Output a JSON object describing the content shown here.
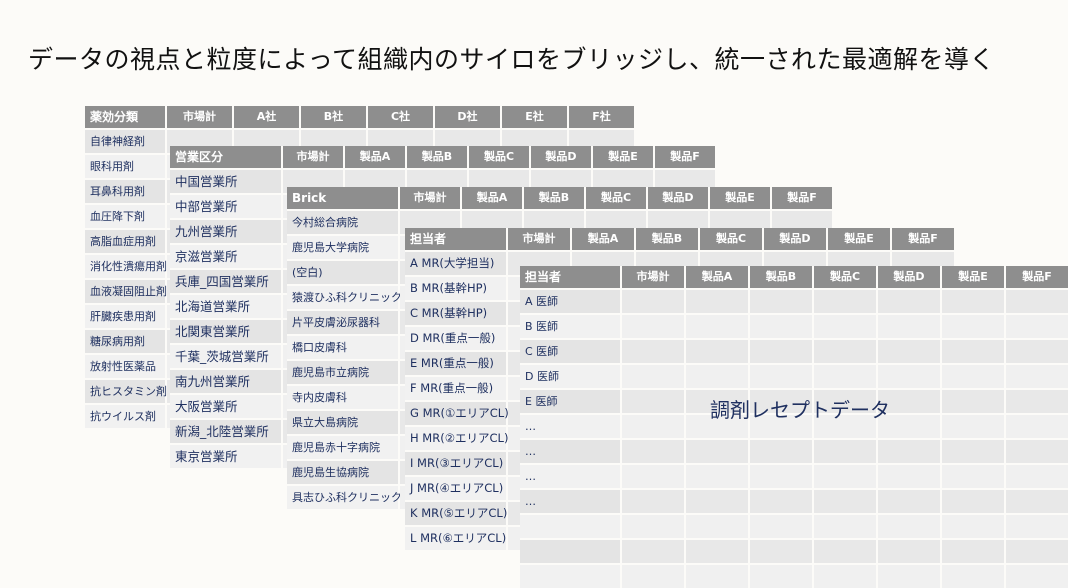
{
  "title": "データの視点と粒度によって組織内のサイロをブリッジし、統一された最適解を導く",
  "overlay_label": "調剤レセプトデータ",
  "colors": {
    "header": "#8e8e8e",
    "row_dark": "#e4e4e4",
    "row_light": "#f1f1f1",
    "text": "#1f3060"
  },
  "tables": [
    {
      "id": "t1",
      "headers": [
        "薬効分類",
        "市場計",
        "A社",
        "B社",
        "C社",
        "D社",
        "E社",
        "F社"
      ],
      "rows": [
        "自律神経剤",
        "眼科用剤",
        "耳鼻科用剤",
        "血圧降下剤",
        "高脂血症用剤",
        "消化性潰瘍用剤",
        "血液凝固阻止剤",
        "肝臓疾患用剤",
        "糖尿病用剤",
        "放射性医薬品",
        "抗ヒスタミン剤",
        "抗ウイルス剤"
      ]
    },
    {
      "id": "t2",
      "headers": [
        "営業区分",
        "市場計",
        "製品A",
        "製品B",
        "製品C",
        "製品D",
        "製品E",
        "製品F"
      ],
      "rows": [
        "中国営業所",
        "中部営業所",
        "九州営業所",
        "京滋営業所",
        "兵庫_四国営業所",
        "北海道営業所",
        "北関東営業所",
        "千葉_茨城営業所",
        "南九州営業所",
        "大阪営業所",
        "新潟_北陸営業所",
        "東京営業所"
      ]
    },
    {
      "id": "t3",
      "headers": [
        "Brick",
        "市場計",
        "製品A",
        "製品B",
        "製品C",
        "製品D",
        "製品E",
        "製品F"
      ],
      "rows": [
        "今村総合病院",
        "鹿児島大学病院",
        "(空白)",
        " 猿渡ひふ科クリニック",
        "片平皮膚泌尿器科",
        "橋口皮膚科",
        "鹿児島市立病院",
        "寺内皮膚科",
        "県立大島病院",
        "鹿児島赤十字病院",
        "鹿児島生協病院",
        "具志ひふ科クリニック"
      ]
    },
    {
      "id": "t4",
      "headers": [
        "担当者",
        "市場計",
        "製品A",
        "製品B",
        "製品C",
        "製品D",
        "製品E",
        "製品F"
      ],
      "rows": [
        "A MR(大学担当)",
        "B MR(基幹HP)",
        "C MR(基幹HP)",
        "D MR(重点一般)",
        "E MR(重点一般)",
        "F MR(重点一般)",
        "G MR(①エリアCL)",
        "H MR(②エリアCL)",
        "I MR(③エリアCL)",
        "J MR(④エリアCL)",
        "K MR(⑤エリアCL)",
        "L MR(⑥エリアCL)"
      ]
    },
    {
      "id": "t5",
      "headers": [
        "担当者",
        "市場計",
        "製品A",
        "製品B",
        "製品C",
        "製品D",
        "製品E",
        "製品F"
      ],
      "rows": [
        "A 医師",
        "B 医師",
        "C 医師",
        "D 医師",
        "E 医師",
        "…",
        "…",
        "…",
        "…",
        "",
        "",
        ""
      ]
    }
  ]
}
